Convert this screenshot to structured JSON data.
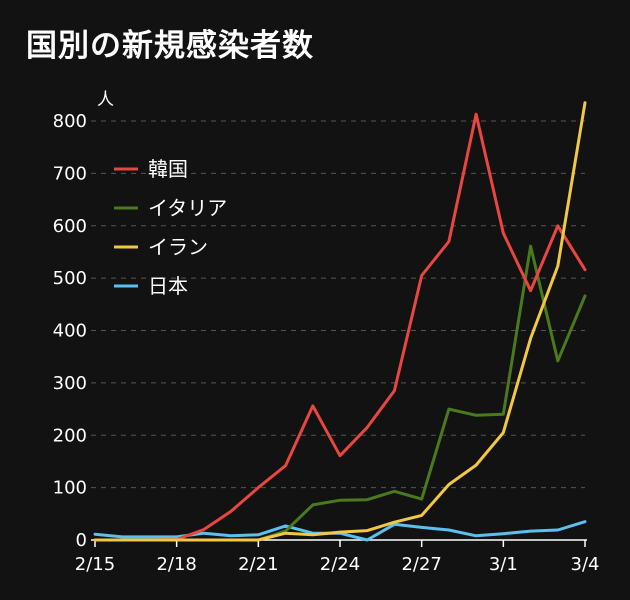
{
  "title": "国別の新規感染者数",
  "colors": {
    "background": "#121212",
    "korea": "#e8473f",
    "italy": "#4a7a1c",
    "iran": "#f2c744",
    "japan": "#5bc0f0",
    "grid": "#555555"
  },
  "chart_data": {
    "type": "line",
    "title": "国別の新規感染者数",
    "ylabel": "人",
    "xlabel": "",
    "ylim": [
      0,
      800
    ],
    "yticks": [
      0,
      100,
      200,
      300,
      400,
      500,
      600,
      700,
      800
    ],
    "grid": true,
    "legend_position": "top-left",
    "x": [
      "2/15",
      "2/16",
      "2/17",
      "2/18",
      "2/19",
      "2/20",
      "2/21",
      "2/22",
      "2/23",
      "2/24",
      "2/25",
      "2/26",
      "2/27",
      "2/28",
      "2/29",
      "3/1",
      "3/2",
      "3/3",
      "3/4"
    ],
    "xtick_labels": [
      "2/15",
      "2/18",
      "2/21",
      "2/24",
      "2/27",
      "3/1",
      "3/4"
    ],
    "series": [
      {
        "name": "韓国",
        "color": "#e8473f",
        "values": [
          0,
          0,
          0,
          1,
          20,
          55,
          100,
          142,
          256,
          161,
          215,
          285,
          505,
          570,
          813,
          586,
          476,
          600,
          516
        ]
      },
      {
        "name": "イタリア",
        "color": "#4a7a1c",
        "values": [
          0,
          0,
          0,
          0,
          0,
          0,
          0,
          17,
          67,
          76,
          77,
          93,
          78,
          250,
          238,
          240,
          561,
          342,
          466
        ]
      },
      {
        "name": "イラン",
        "color": "#f2c744",
        "values": [
          0,
          0,
          0,
          0,
          0,
          0,
          0,
          13,
          10,
          15,
          18,
          34,
          47,
          106,
          143,
          205,
          385,
          523,
          835
        ]
      },
      {
        "name": "日本",
        "color": "#5bc0f0",
        "values": [
          11,
          6,
          6,
          6,
          13,
          8,
          10,
          27,
          13,
          13,
          0,
          30,
          24,
          19,
          8,
          12,
          17,
          19,
          35
        ]
      }
    ]
  }
}
